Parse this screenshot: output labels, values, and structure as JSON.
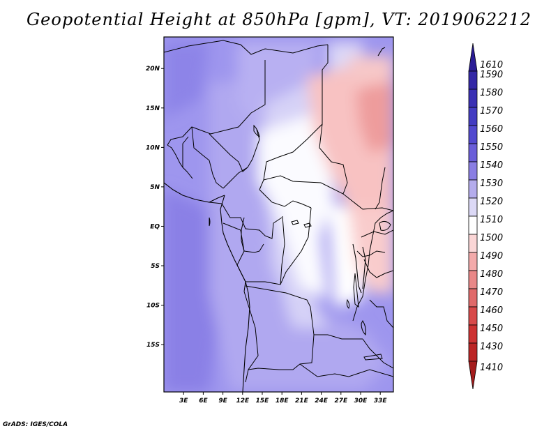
{
  "title": "Geopotential Height at 850hPa [gpm], VT: 2019062212",
  "credit": "GrADS: IGES/COLA",
  "map": {
    "lat_range": [
      -21,
      24
    ],
    "lon_range": [
      0,
      35
    ],
    "lat_ticks": [
      {
        "lat": 20,
        "label": "20N"
      },
      {
        "lat": 15,
        "label": "15N"
      },
      {
        "lat": 10,
        "label": "10N"
      },
      {
        "lat": 5,
        "label": "5N"
      },
      {
        "lat": 0,
        "label": "EQ"
      },
      {
        "lat": -5,
        "label": "5S"
      },
      {
        "lat": -10,
        "label": "10S"
      },
      {
        "lat": -15,
        "label": "15S"
      }
    ],
    "lon_ticks": [
      {
        "lon": 3,
        "label": "3E"
      },
      {
        "lon": 6,
        "label": "6E"
      },
      {
        "lon": 9,
        "label": "9E"
      },
      {
        "lon": 12,
        "label": "12E"
      },
      {
        "lon": 15,
        "label": "15E"
      },
      {
        "lon": 18,
        "label": "18E"
      },
      {
        "lon": 21,
        "label": "21E"
      },
      {
        "lon": 24,
        "label": "24E"
      },
      {
        "lon": 27,
        "label": "27E"
      },
      {
        "lon": 30,
        "label": "30E"
      },
      {
        "lon": 33,
        "label": "33E"
      }
    ]
  },
  "colorbar": {
    "levels": [
      {
        "label": "1610",
        "color": "#2a1c96"
      },
      {
        "label": "1590",
        "color": "#3327a6"
      },
      {
        "label": "1580",
        "color": "#3a30b4"
      },
      {
        "label": "1570",
        "color": "#433cc2"
      },
      {
        "label": "1560",
        "color": "#5249cf"
      },
      {
        "label": "1550",
        "color": "#6a5ed9"
      },
      {
        "label": "1540",
        "color": "#8a7ee3"
      },
      {
        "label": "1530",
        "color": "#b4acec"
      },
      {
        "label": "1520",
        "color": "#dcd9f6"
      },
      {
        "label": "1510",
        "color": "#ffffff"
      },
      {
        "label": "1500",
        "color": "#fbd6d6"
      },
      {
        "label": "1490",
        "color": "#f3aaaa"
      },
      {
        "label": "1480",
        "color": "#e98888"
      },
      {
        "label": "1470",
        "color": "#e06a6a"
      },
      {
        "label": "1460",
        "color": "#d84a4a"
      },
      {
        "label": "1450",
        "color": "#cd3232"
      },
      {
        "label": "1430",
        "color": "#bb2424"
      },
      {
        "label": "1410",
        "color": "#a51c1c"
      }
    ]
  },
  "colors": {
    "base_field": "#a098ee",
    "border": "#000000"
  }
}
